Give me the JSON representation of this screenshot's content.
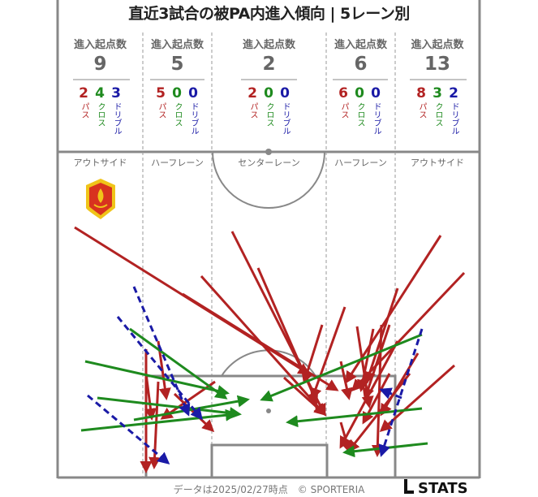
{
  "title": "直近3試合の被PA内進入傾向 | 5レーン別",
  "header_label": "進入起点数",
  "type_labels": {
    "pass": "パス",
    "cross": "クロス",
    "dribble": "ドリブル"
  },
  "colors": {
    "pass": "#b22222",
    "cross": "#1e8a1e",
    "dribble": "#1a1aa6",
    "lines": "#888888"
  },
  "lanes": [
    {
      "name": "アウトサイド",
      "total": "9",
      "pass": "2",
      "cross": "4",
      "dribble": "3"
    },
    {
      "name": "ハーフレーン",
      "total": "5",
      "pass": "5",
      "cross": "0",
      "dribble": "0"
    },
    {
      "name": "センターレーン",
      "total": "2",
      "pass": "2",
      "cross": "0",
      "dribble": "0"
    },
    {
      "name": "ハーフレーン",
      "total": "6",
      "pass": "6",
      "cross": "0",
      "dribble": "0"
    },
    {
      "name": "アウトサイド",
      "total": "13",
      "pass": "8",
      "cross": "3",
      "dribble": "2"
    }
  ],
  "footer": "データは2025/02/27時点　© SPORTERIA",
  "brand": "STATS",
  "team_crest_icon": "crest-icon"
}
